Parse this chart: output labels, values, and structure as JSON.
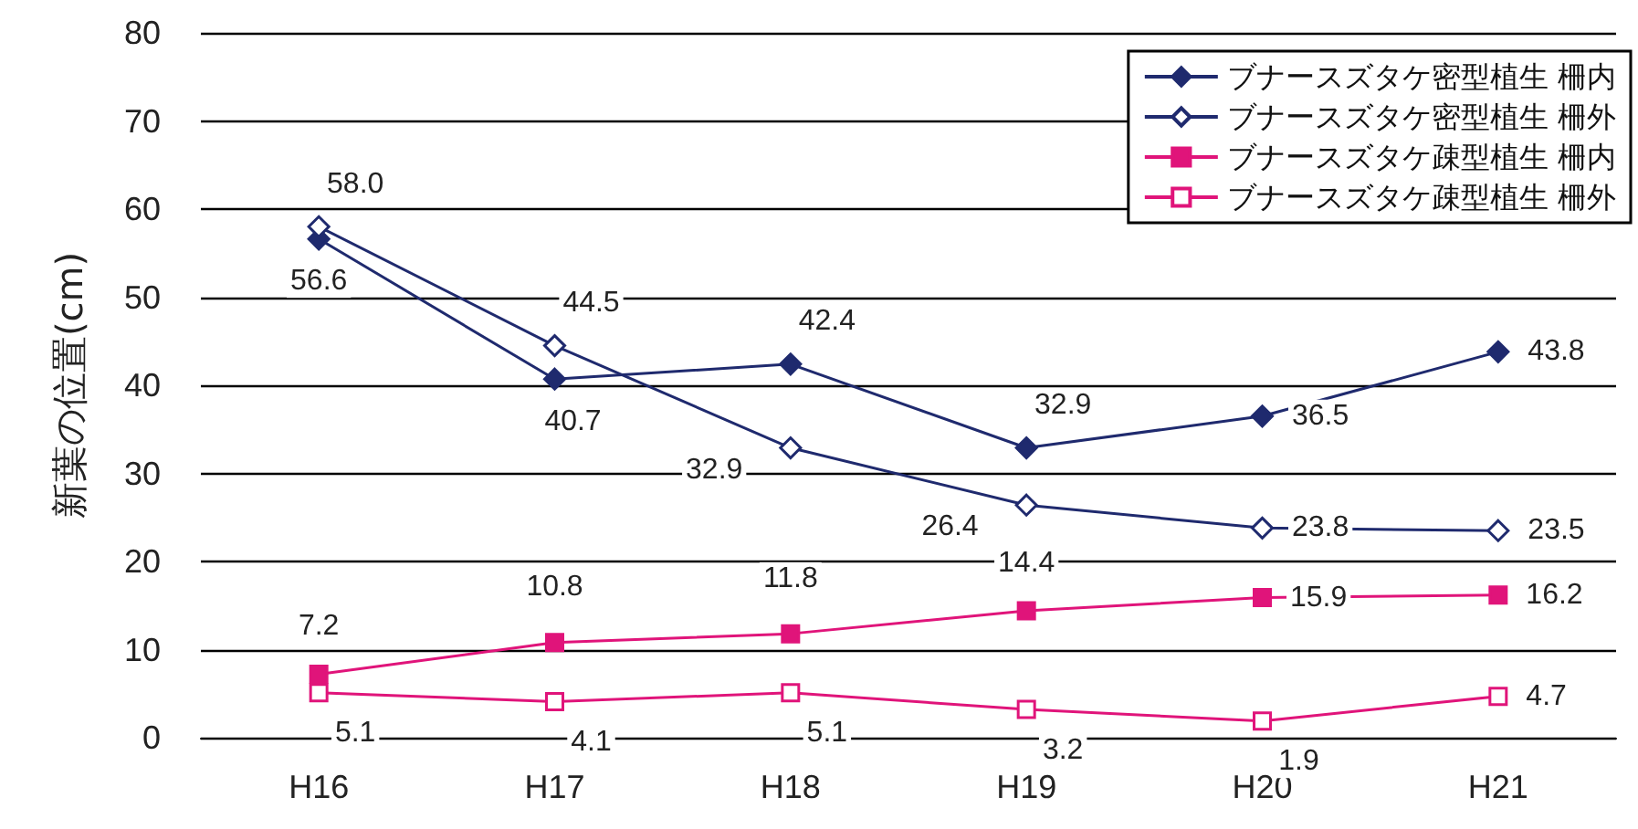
{
  "chart_data": {
    "type": "line",
    "ylabel": "新葉の位置(cm)",
    "categories": [
      "H16",
      "H17",
      "H18",
      "H19",
      "H20",
      "H21"
    ],
    "series": [
      {
        "name": "ブナースズタケ密型植生 柵内",
        "color": "#1f2a6e",
        "marker": "diamond",
        "values": [
          56.6,
          40.7,
          42.4,
          32.9,
          36.5,
          43.8
        ],
        "value_labels": [
          "56.6",
          "40.7",
          "42.4",
          "32.9",
          "36.5",
          "43.8"
        ]
      },
      {
        "name": "ブナースズタケ密型植生 柵外",
        "color": "#1f2a6e",
        "marker": "diamond",
        "values": [
          58.0,
          44.5,
          32.9,
          26.4,
          23.8,
          23.5
        ],
        "value_labels": [
          "58.0",
          "44.5",
          "32.9",
          "26.4",
          "23.8",
          "23.5"
        ]
      },
      {
        "name": "ブナースズタケ疎型植生 柵内",
        "color": "#e0147a",
        "marker": "square",
        "values": [
          7.2,
          10.8,
          11.8,
          14.4,
          15.9,
          16.2
        ],
        "value_labels": [
          "7.2",
          "10.8",
          "11.8",
          "14.4",
          "15.9",
          "16.2"
        ]
      },
      {
        "name": "ブナースズタケ疎型植生 柵外",
        "color": "#e0147a",
        "marker": "square",
        "values": [
          5.1,
          4.1,
          5.1,
          3.2,
          1.9,
          4.7
        ],
        "value_labels": [
          "5.1",
          "4.1",
          "5.1",
          "3.2",
          "1.9",
          "4.7"
        ]
      }
    ],
    "ylim": [
      0,
      80
    ],
    "yticks": [
      0,
      10,
      20,
      30,
      40,
      50,
      60,
      70,
      80
    ],
    "grid": "y",
    "legend": "top right"
  }
}
